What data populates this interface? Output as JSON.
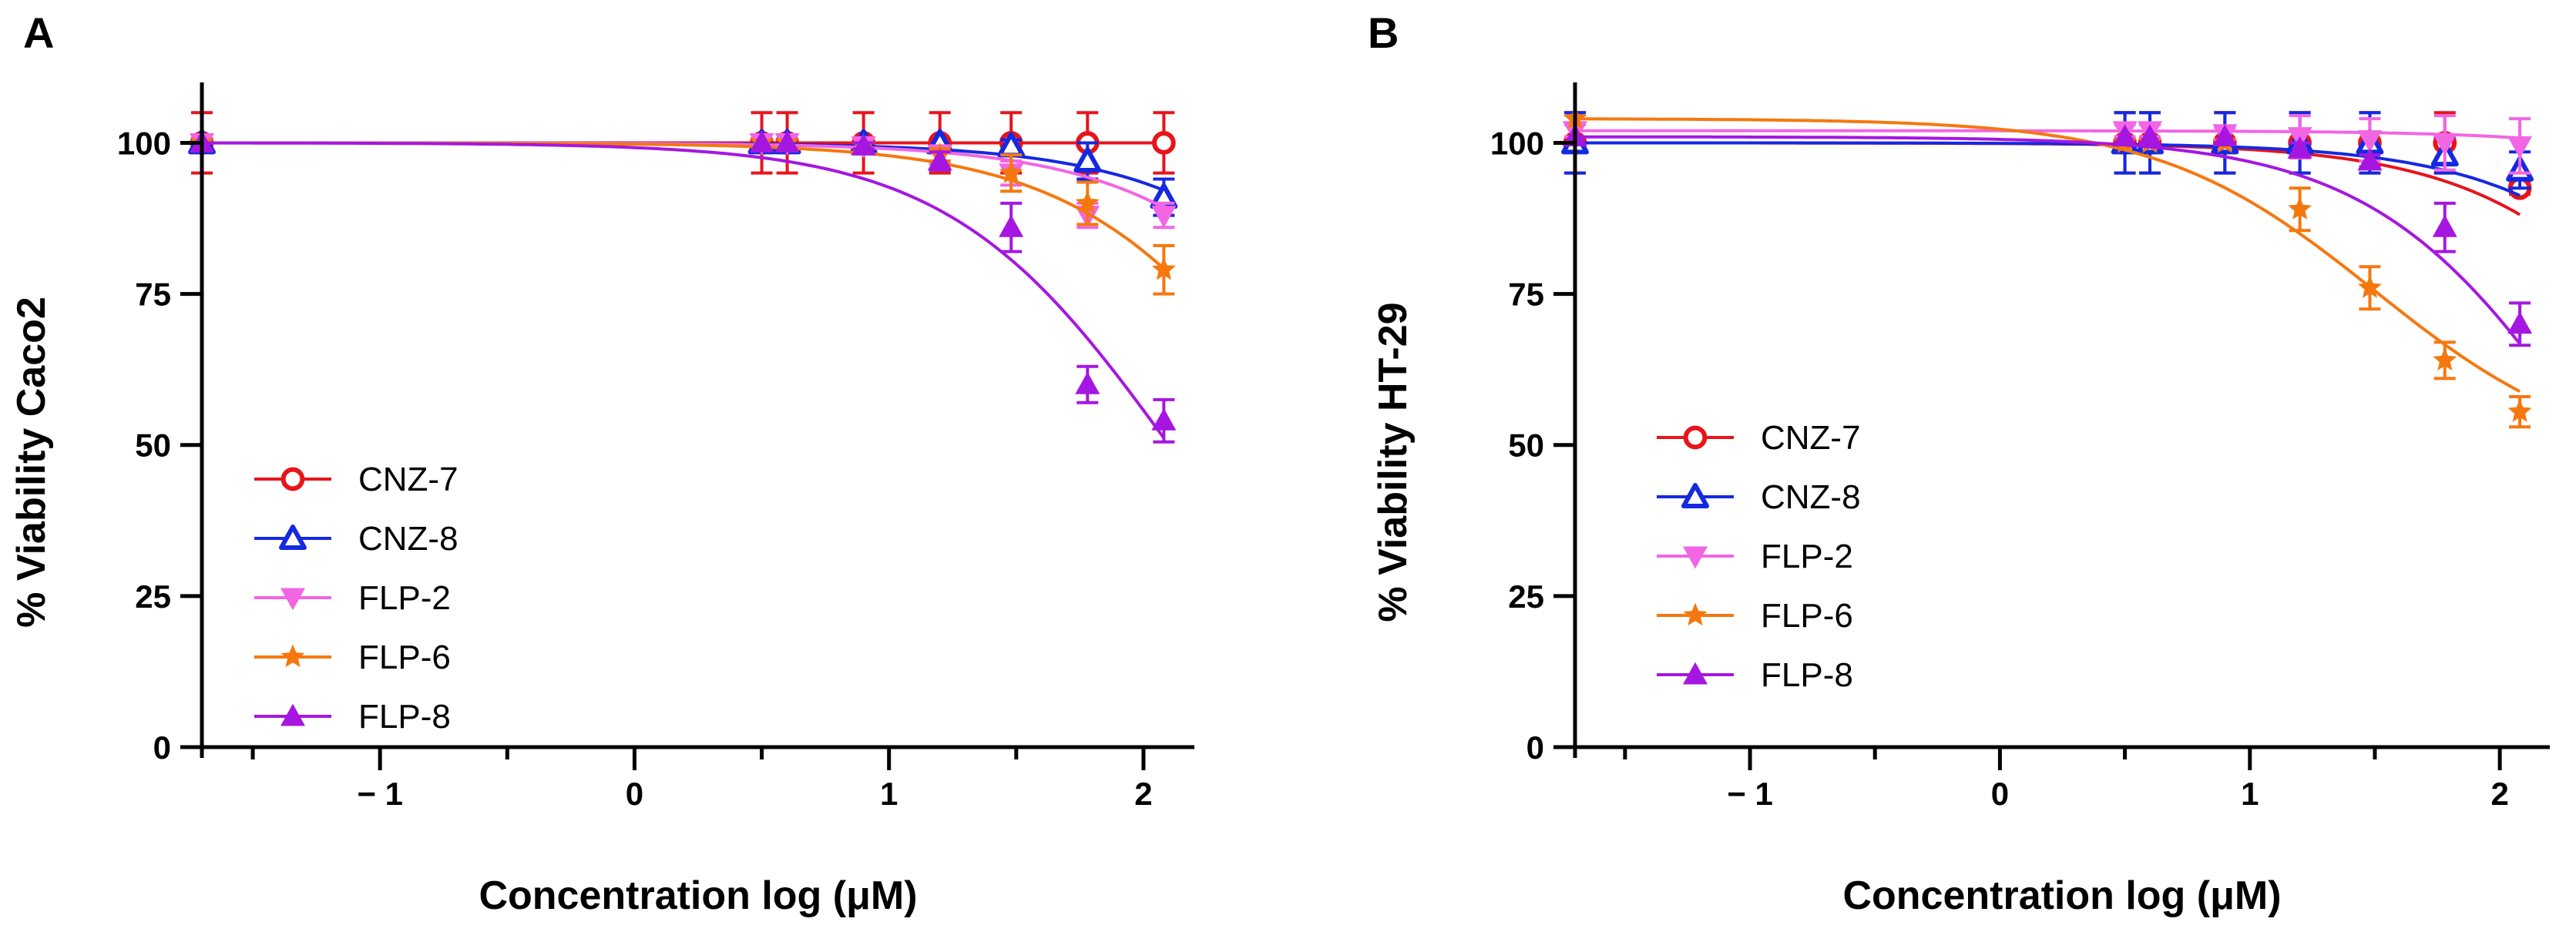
{
  "figure": {
    "panels": [
      "A",
      "B"
    ]
  },
  "chart_data": [
    {
      "type": "line",
      "panel": "A",
      "title": "",
      "xlabel": "Concentration log (μM)",
      "ylabel": "% Viability Caco2",
      "xlim": [
        -1.7,
        2.2
      ],
      "ylim": [
        0,
        110
      ],
      "xticks": [
        -1,
        0,
        1,
        2
      ],
      "xtick_labels": [
        "− 1",
        "0",
        "1",
        "2"
      ],
      "yticks": [
        0,
        25,
        50,
        75,
        100
      ],
      "ytick_labels": [
        "0",
        "25",
        "50",
        "75",
        "100"
      ],
      "legend_position": "bottom-left",
      "x": [
        -1.7,
        0.5,
        0.6,
        0.9,
        1.2,
        1.48,
        1.78,
        2.08
      ],
      "series": [
        {
          "name": "CNZ-7",
          "color": "#e8141c",
          "marker": "circle-open",
          "values": [
            100,
            100,
            100,
            100,
            100,
            100,
            100,
            100
          ],
          "errors": [
            5,
            5,
            5,
            5,
            5,
            5,
            5,
            5
          ],
          "fit": {
            "ic50": 6,
            "bottom": 0,
            "top": 100
          }
        },
        {
          "name": "CNZ-8",
          "color": "#1429e0",
          "marker": "triangle-open",
          "values": [
            100,
            100,
            100,
            100,
            100,
            99.5,
            97,
            91
          ],
          "errors": [
            0,
            0,
            0,
            0,
            0,
            1,
            3,
            3
          ],
          "fit": {
            "ic50": 3.15,
            "bottom": 0,
            "top": 100
          }
        },
        {
          "name": "FLP-2",
          "color": "#f266e3",
          "marker": "triangle-down",
          "values": [
            100,
            100,
            100,
            99.5,
            98,
            95,
            88,
            88
          ],
          "errors": [
            0,
            0,
            0,
            0.5,
            1.5,
            2,
            2,
            2
          ],
          "fit": {
            "ic50": 3.0,
            "bottom": 0,
            "top": 100
          }
        },
        {
          "name": "FLP-6",
          "color": "#f5780f",
          "marker": "star",
          "values": [
            100,
            100,
            100,
            99.5,
            98,
            95,
            90,
            79
          ],
          "errors": [
            0,
            0,
            0,
            0.5,
            1,
            3,
            3.5,
            4
          ],
          "fit": {
            "ic50": 2.66,
            "bottom": 0,
            "top": 100
          }
        },
        {
          "name": "FLP-8",
          "color": "#a517e0",
          "marker": "triangle-up",
          "values": [
            100,
            100,
            100,
            99.5,
            97,
            86,
            60,
            54
          ],
          "errors": [
            0,
            0,
            0,
            0.5,
            1.5,
            4,
            3,
            3.5
          ],
          "fit": {
            "ic50": 2.1,
            "bottom": 0,
            "top": 100
          }
        }
      ]
    },
    {
      "type": "line",
      "panel": "B",
      "title": "",
      "xlabel": "Concentration log (μM)",
      "ylabel": "% Viability HT-29",
      "xlim": [
        -1.7,
        2.2
      ],
      "ylim": [
        0,
        110
      ],
      "xticks": [
        -1,
        0,
        1,
        2
      ],
      "xtick_labels": [
        "− 1",
        "0",
        "1",
        "2"
      ],
      "yticks": [
        0,
        25,
        50,
        75,
        100
      ],
      "ytick_labels": [
        "0",
        "25",
        "50",
        "75",
        "100"
      ],
      "legend_position": "bottom-left",
      "x": [
        -1.7,
        0.5,
        0.6,
        0.9,
        1.2,
        1.48,
        1.78,
        2.08
      ],
      "series": [
        {
          "name": "CNZ-7",
          "color": "#e8141c",
          "marker": "circle-open",
          "values": [
            100,
            100,
            100,
            100,
            100,
            100,
            100,
            92.5
          ],
          "errors": [
            5,
            5,
            5,
            5,
            5,
            5,
            5,
            1
          ],
          "fit": {
            "ic50": 2.95,
            "bottom": 0,
            "top": 100
          }
        },
        {
          "name": "CNZ-8",
          "color": "#1429e0",
          "marker": "triangle-open",
          "values": [
            100,
            100,
            100,
            100,
            100,
            100,
            98,
            95.5
          ],
          "errors": [
            5,
            5,
            5,
            5,
            5,
            5,
            3,
            3
          ],
          "fit": {
            "ic50": 3.1,
            "bottom": 0,
            "top": 100
          }
        },
        {
          "name": "FLP-2",
          "color": "#f266e3",
          "marker": "triangle-down",
          "values": [
            102,
            102,
            102,
            101.5,
            101,
            100.5,
            100,
            99.5
          ],
          "errors": [
            1,
            1,
            1,
            1,
            3.5,
            3.5,
            4.5,
            4.5
          ],
          "fit": {
            "ic50": 4.0,
            "bottom": 0,
            "top": 102
          }
        },
        {
          "name": "FLP-6",
          "color": "#f5780f",
          "marker": "star",
          "values": [
            104,
            100,
            100,
            100,
            89,
            76,
            64,
            55.5
          ],
          "errors": [
            0,
            0,
            0,
            0,
            3.5,
            3.5,
            3,
            2.5
          ],
          "fit": {
            "ic50": 1.5,
            "bottom": 47,
            "top": 104
          }
        },
        {
          "name": "FLP-8",
          "color": "#a517e0",
          "marker": "triangle-up",
          "values": [
            101,
            101,
            101,
            101,
            99,
            97,
            86,
            70
          ],
          "errors": [
            0,
            0,
            0,
            0,
            1,
            1,
            4,
            3.5
          ],
          "fit": {
            "ic50": 2.37,
            "bottom": 0,
            "top": 101
          }
        }
      ]
    }
  ]
}
